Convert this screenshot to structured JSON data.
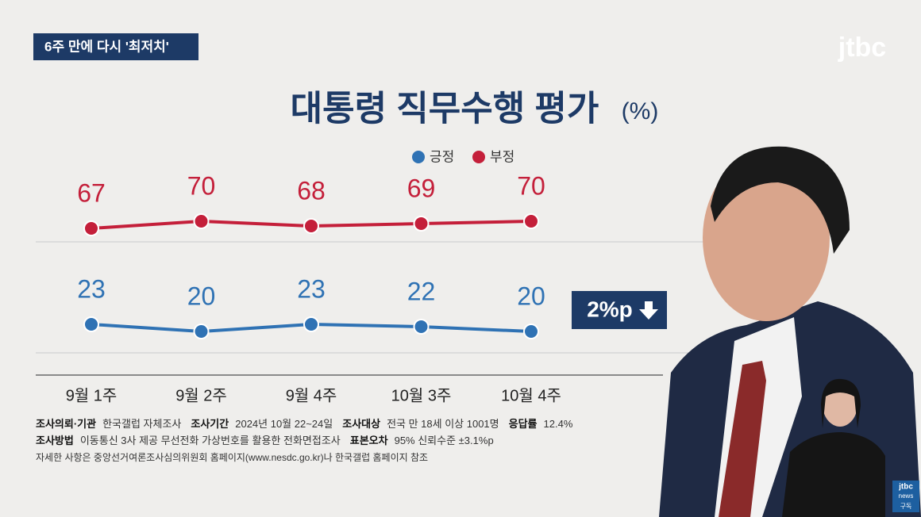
{
  "header": {
    "badge": "6주 만에 다시 '최저치'",
    "logo": "jtbc",
    "corner_logo": "jtbc",
    "corner_sub": "news",
    "corner_action": "구독"
  },
  "chart_data": {
    "type": "line",
    "title": "대통령 직무수행 평가",
    "unit": "(%)",
    "categories": [
      "9월 1주",
      "9월 2주",
      "9월 4주",
      "10월 3주",
      "10월 4주"
    ],
    "series": [
      {
        "name": "긍정",
        "color": "#2f72b4",
        "values": [
          23,
          20,
          23,
          22,
          20
        ]
      },
      {
        "name": "부정",
        "color": "#c41f3a",
        "values": [
          67,
          70,
          68,
          69,
          70
        ]
      }
    ],
    "annotation": "2%p"
  },
  "footer": {
    "lines": [
      [
        {
          "label": "조사의뢰·기관",
          "text": "한국갤럽 자체조사"
        },
        {
          "label": "조사기간",
          "text": "2024년 10월 22~24일"
        },
        {
          "label": "조사대상",
          "text": "전국 만 18세 이상 1001명"
        },
        {
          "label": "응답률",
          "text": "12.4%"
        }
      ],
      [
        {
          "label": "조사방법",
          "text": "이동통신 3사 제공 무선전화 가상번호를 활용한 전화면접조사"
        },
        {
          "label": "표본오차",
          "text": "95% 신뢰수준 ±3.1%p"
        }
      ]
    ],
    "note": "자세한 사항은 중앙선거여론조사심의위원회 홈페이지(www.nesdc.go.kr)나 한국갤럽 홈페이지 참조"
  }
}
